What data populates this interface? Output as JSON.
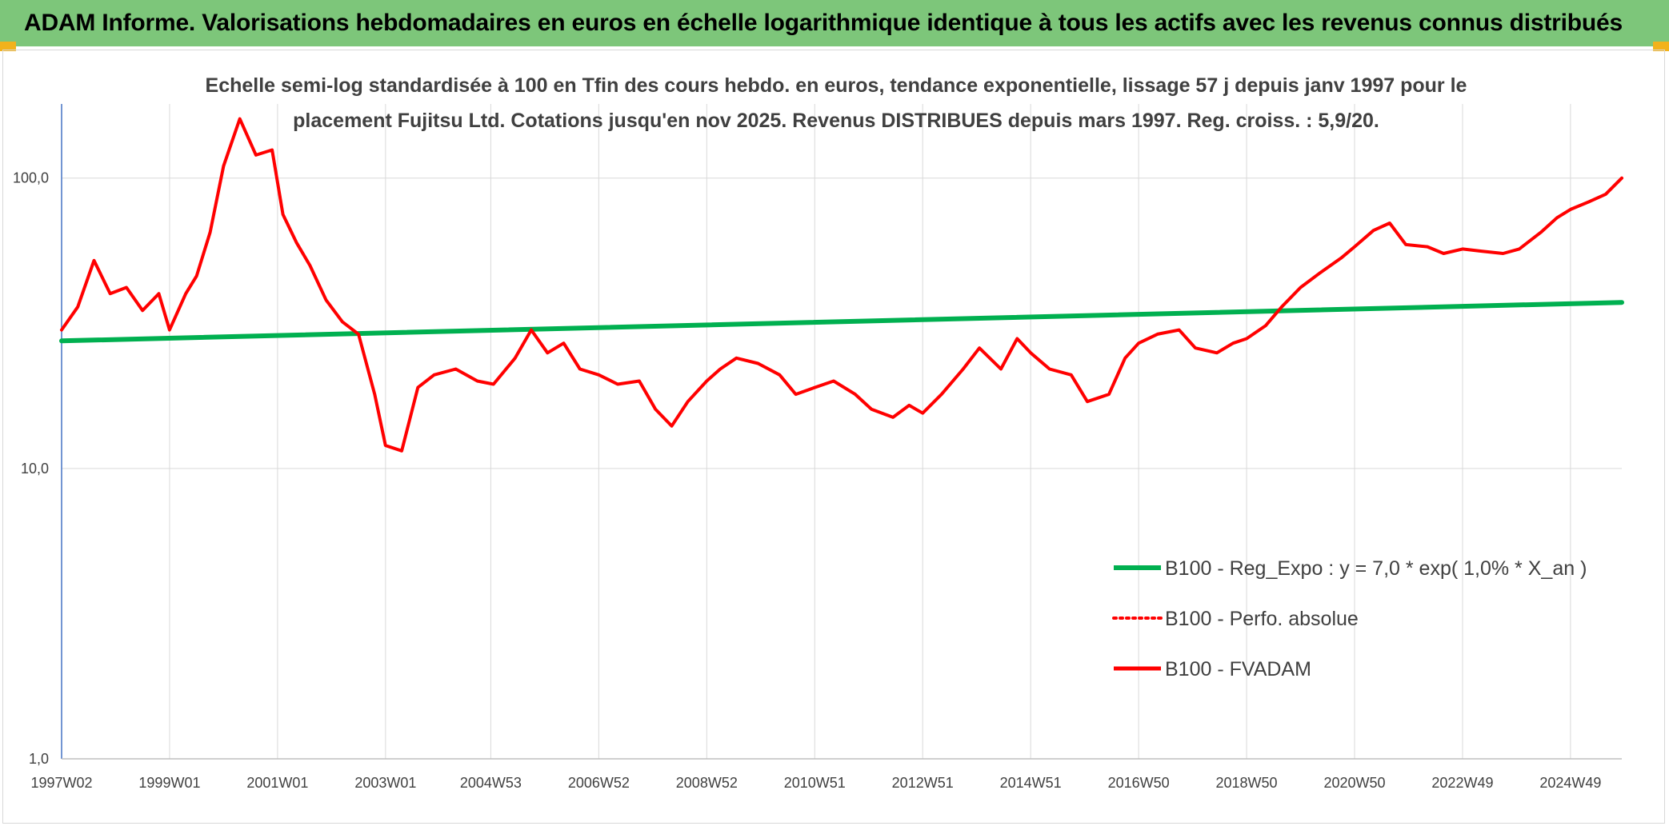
{
  "header": {
    "title": "ADAM Informe. Valorisations hebdomadaires en euros en échelle logarithmique identique à tous les actifs avec les revenus connus distribués"
  },
  "colors": {
    "banner": "#7dc67a",
    "corner_accent": "#f2b21c",
    "regression": "#00b050",
    "fvadam": "#ff0000",
    "grid": "#d9d9d9",
    "axis": "#4472c4",
    "text": "#404040"
  },
  "chart_data": {
    "type": "line",
    "scale_y": "log",
    "ylim": [
      1,
      180
    ],
    "y_ticks": [
      1,
      10,
      100
    ],
    "y_tick_labels": [
      "1,0",
      "10,0",
      "100,0"
    ],
    "x_range": [
      1997.0,
      2025.9
    ],
    "x_ticks": [
      1997.0,
      1999.0,
      2001.0,
      2003.0,
      2004.95,
      2006.95,
      2008.95,
      2010.95,
      2012.95,
      2014.95,
      2016.95,
      2018.95,
      2020.95,
      2022.95,
      2024.95
    ],
    "x_tick_labels": [
      "1997W02",
      "1999W01",
      "2001W01",
      "2003W01",
      "2004W53",
      "2006W52",
      "2008W52",
      "2010W51",
      "2012W51",
      "2014W51",
      "2016W50",
      "2018W50",
      "2020W50",
      "2022W49",
      "2024W49"
    ],
    "title_lines": [
      "Echelle semi-log standardisée à 100 en Tfin des cours hebdo. en euros, tendance exponentielle, lissage 57 j depuis janv 1997 pour le",
      "placement Fujitsu Ltd. Cotations jusqu'en nov 2025. Revenus DISTRIBUES depuis mars 1997. Reg. croiss. : 5,9/20."
    ],
    "grid": true,
    "legend_position": "right-middle",
    "legend": [
      {
        "label": "B100 - Reg_Expo : y = 7,0 * exp( 1,0% *  X_an )",
        "color": "#00b050",
        "style": "solid"
      },
      {
        "label": "B100 - Perfo. absolue",
        "color": "#ff0000",
        "style": "dotted"
      },
      {
        "label": "B100 - FVADAM",
        "color": "#ff0000",
        "style": "solid"
      }
    ],
    "series": [
      {
        "name": "B100 - Reg_Expo : y = 7,0 * exp( 1,0% *  X_an )",
        "color": "#00b050",
        "x": [
          1997.0,
          2025.9
        ],
        "y": [
          27.5,
          37.3
        ]
      },
      {
        "name": "B100 - FVADAM",
        "color": "#ff0000",
        "x": [
          1997.0,
          1997.3,
          1997.6,
          1997.9,
          1998.2,
          1998.5,
          1998.8,
          1999.0,
          1999.3,
          1999.5,
          1999.75,
          2000.0,
          2000.3,
          2000.6,
          2000.9,
          2001.1,
          2001.35,
          2001.6,
          2001.9,
          2002.2,
          2002.5,
          2002.8,
          2003.0,
          2003.3,
          2003.6,
          2003.9,
          2004.3,
          2004.7,
          2005.0,
          2005.4,
          2005.7,
          2006.0,
          2006.3,
          2006.6,
          2006.95,
          2007.3,
          2007.7,
          2008.0,
          2008.3,
          2008.6,
          2008.95,
          2009.2,
          2009.5,
          2009.9,
          2010.3,
          2010.6,
          2010.95,
          2011.3,
          2011.7,
          2012.0,
          2012.4,
          2012.7,
          2012.95,
          2013.3,
          2013.7,
          2014.0,
          2014.4,
          2014.7,
          2014.95,
          2015.3,
          2015.7,
          2016.0,
          2016.4,
          2016.7,
          2016.95,
          2017.3,
          2017.7,
          2018.0,
          2018.4,
          2018.7,
          2018.95,
          2019.3,
          2019.6,
          2019.95,
          2020.3,
          2020.7,
          2020.95,
          2021.3,
          2021.6,
          2021.9,
          2022.3,
          2022.6,
          2022.95,
          2023.3,
          2023.7,
          2024.0,
          2024.4,
          2024.7,
          2024.95,
          2025.3,
          2025.6,
          2025.9
        ],
        "y": [
          30,
          36,
          52,
          40,
          42,
          35,
          40,
          30,
          40,
          46,
          65,
          110,
          160,
          120,
          125,
          75,
          60,
          50,
          38,
          32,
          29,
          18,
          12,
          11.5,
          19,
          21,
          22,
          20,
          19.5,
          24,
          30,
          25,
          27,
          22,
          21,
          19.5,
          20,
          16,
          14,
          17,
          20,
          22,
          24,
          23,
          21,
          18,
          19,
          20,
          18,
          16,
          15,
          16.5,
          15.5,
          18,
          22,
          26,
          22,
          28,
          25,
          22,
          21,
          17,
          18,
          24,
          27,
          29,
          30,
          26,
          25,
          27,
          28,
          31,
          36,
          42,
          47,
          53,
          58,
          66,
          70,
          59,
          58,
          55,
          57,
          56,
          55,
          57,
          65,
          73,
          78,
          83,
          88,
          100
        ]
      }
    ]
  }
}
